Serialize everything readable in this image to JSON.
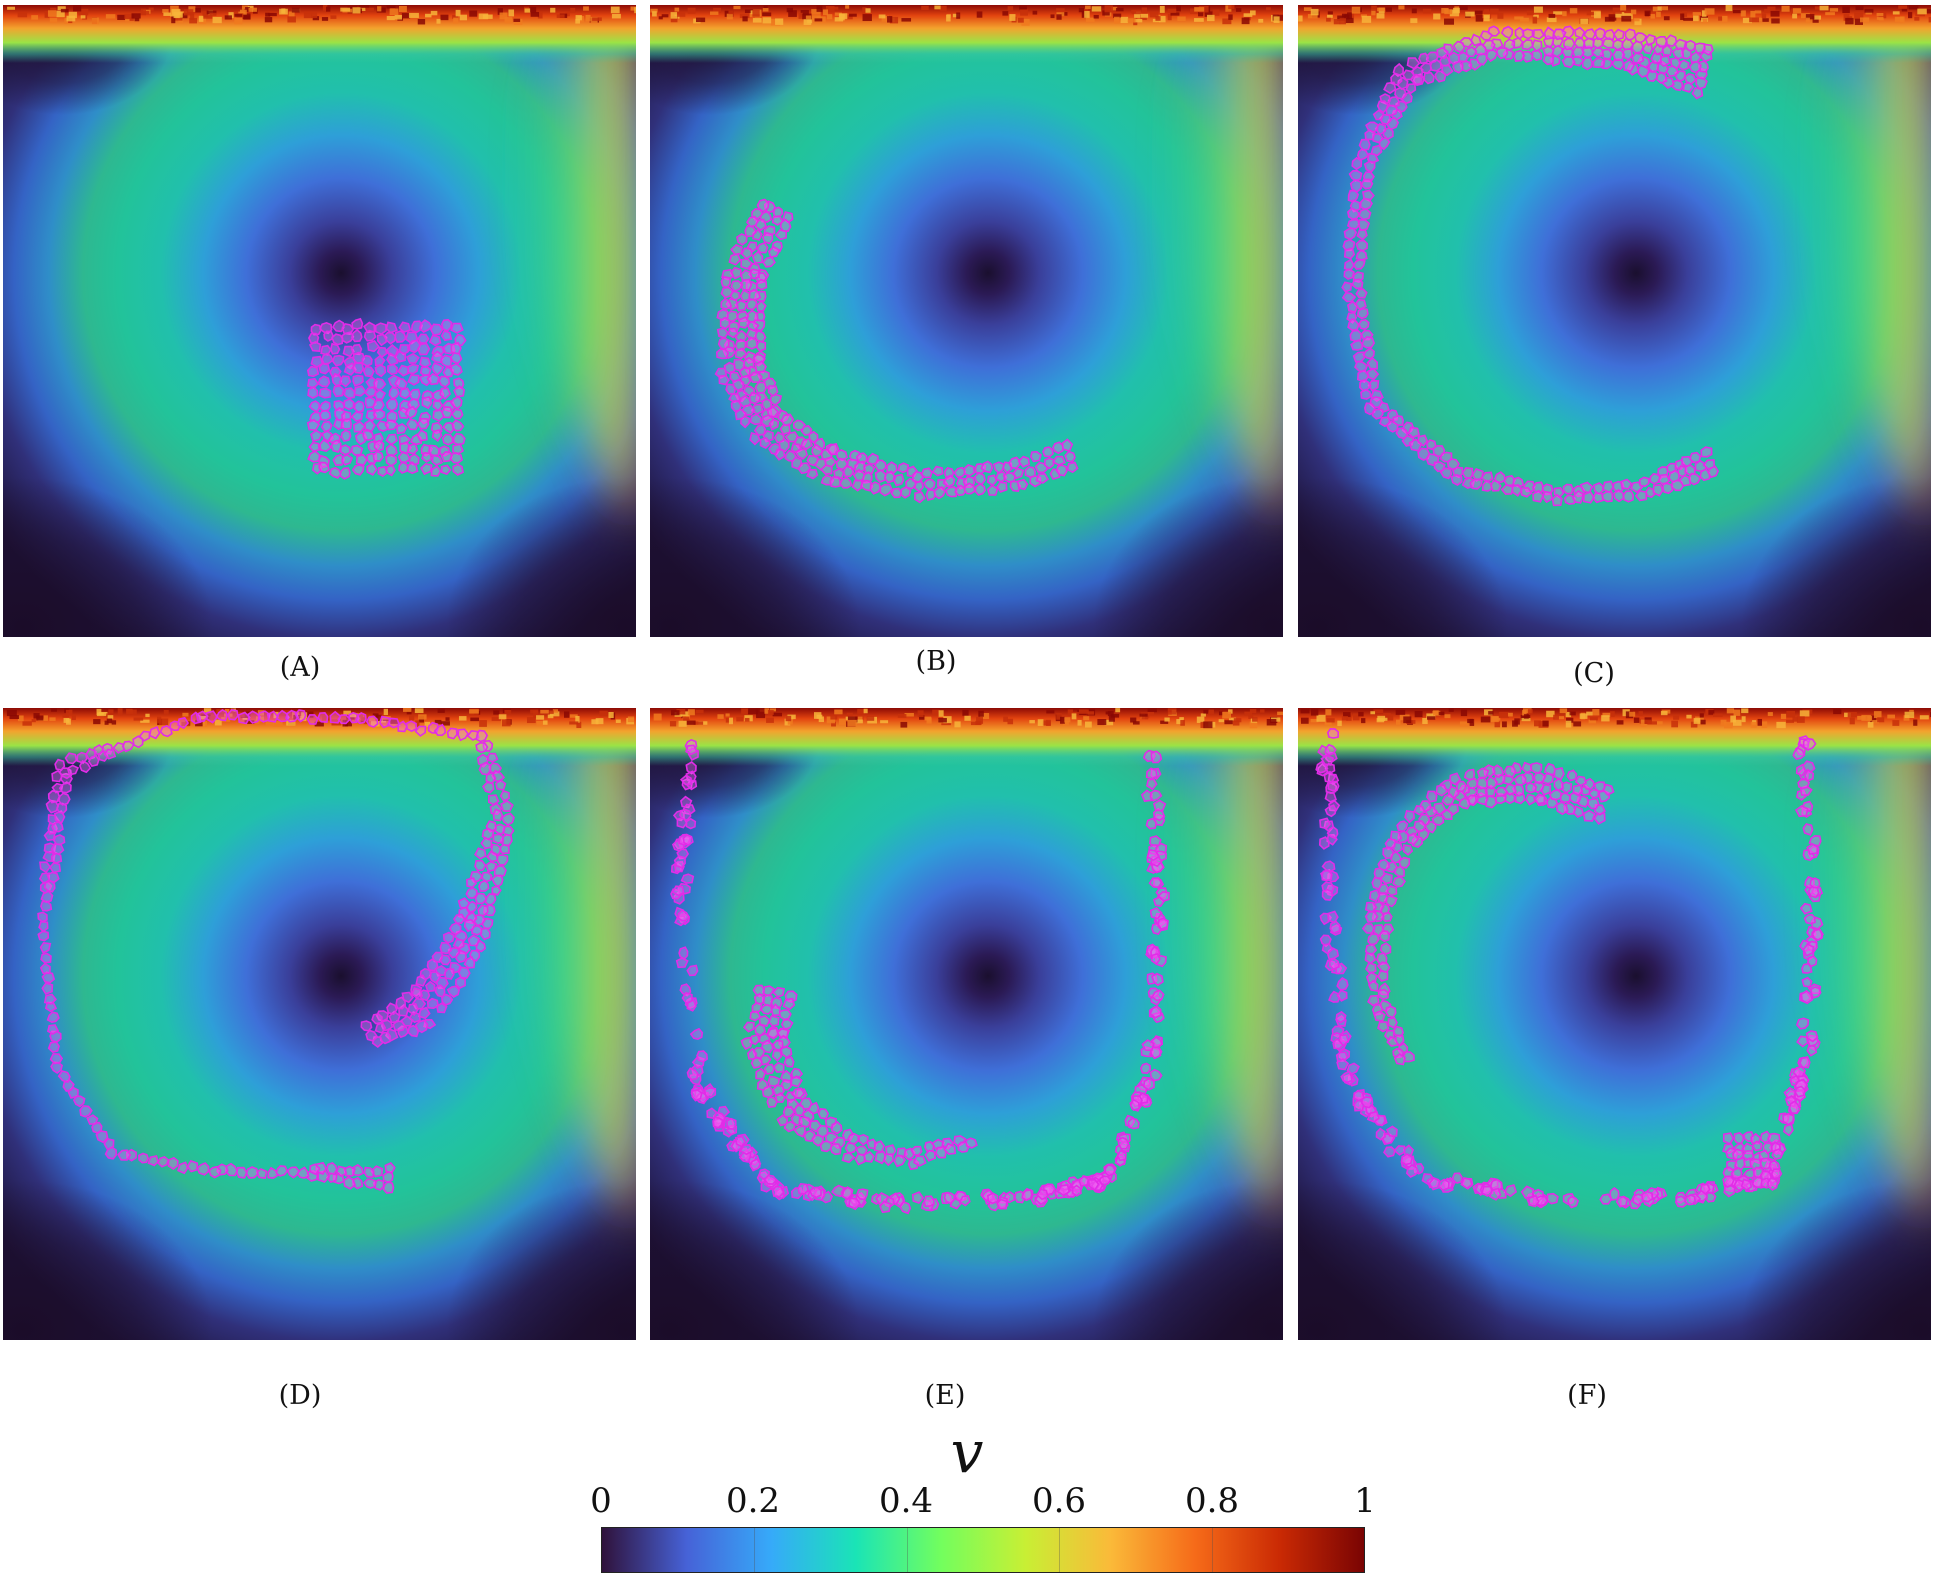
{
  "panels": [
    {
      "label": "(A)",
      "stage": 0
    },
    {
      "label": "(B)",
      "stage": 1
    },
    {
      "label": "(C)",
      "stage": 2
    },
    {
      "label": "(D)",
      "stage": 3
    },
    {
      "label": "(E)",
      "stage": 4
    },
    {
      "label": "(F)",
      "stage": 5
    }
  ],
  "colorbar": {
    "title": "v",
    "ticks": [
      "0",
      "0.2",
      "0.4",
      "0.6",
      "0.8",
      "1"
    ],
    "tick_values": [
      0,
      0.2,
      0.4,
      0.6,
      0.8,
      1
    ],
    "range": [
      0,
      1
    ],
    "colormap": [
      "#30123b",
      "#4662d7",
      "#36aaf9",
      "#1ae4b6",
      "#72fe5e",
      "#c8ef34",
      "#faba39",
      "#f66b19",
      "#ca2a04",
      "#7a0403"
    ]
  },
  "colors": {
    "particle_outline": "#e22ce8",
    "particle_fill": "#f06cf2"
  }
}
